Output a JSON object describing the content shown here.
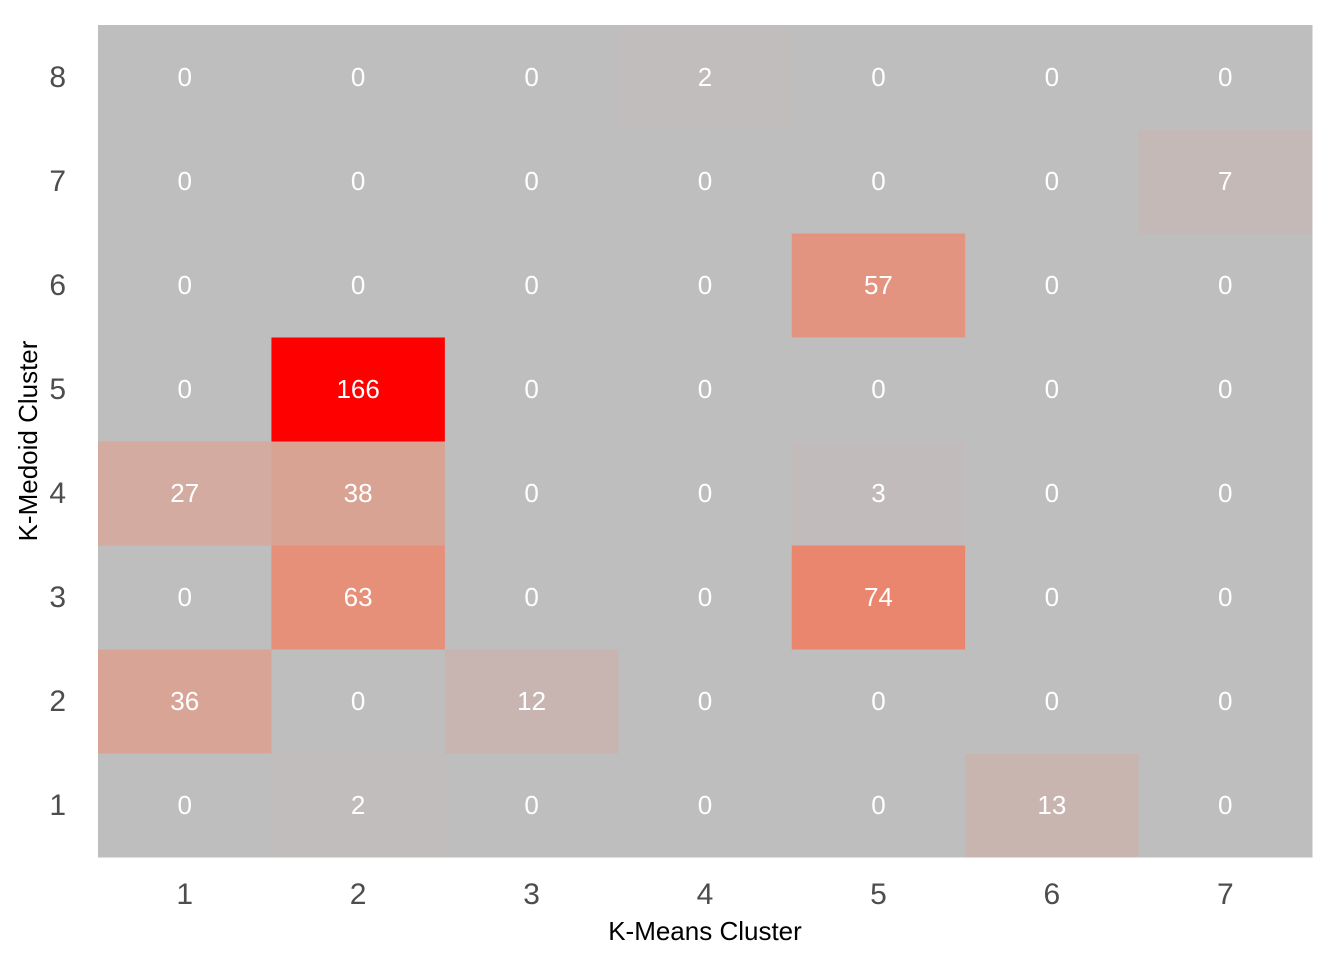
{
  "chart_data": {
    "type": "heatmap",
    "xlabel": "K-Means Cluster",
    "ylabel": "K-Medoid Cluster",
    "x_categories": [
      "1",
      "2",
      "3",
      "4",
      "5",
      "6",
      "7"
    ],
    "y_categories": [
      "1",
      "2",
      "3",
      "4",
      "5",
      "6",
      "7",
      "8"
    ],
    "values": [
      [
        0,
        2,
        0,
        0,
        0,
        13,
        0
      ],
      [
        36,
        0,
        12,
        0,
        0,
        0,
        0
      ],
      [
        0,
        63,
        0,
        0,
        74,
        0,
        0
      ],
      [
        27,
        38,
        0,
        0,
        3,
        0,
        0
      ],
      [
        0,
        166,
        0,
        0,
        0,
        0,
        0
      ],
      [
        0,
        0,
        0,
        0,
        57,
        0,
        0
      ],
      [
        0,
        0,
        0,
        0,
        0,
        0,
        7
      ],
      [
        0,
        0,
        0,
        2,
        0,
        0,
        0
      ]
    ],
    "value_range": [
      0,
      166
    ],
    "color_low": "#bebebe",
    "color_high": "#ff0000",
    "grid": false,
    "legend": "none"
  }
}
